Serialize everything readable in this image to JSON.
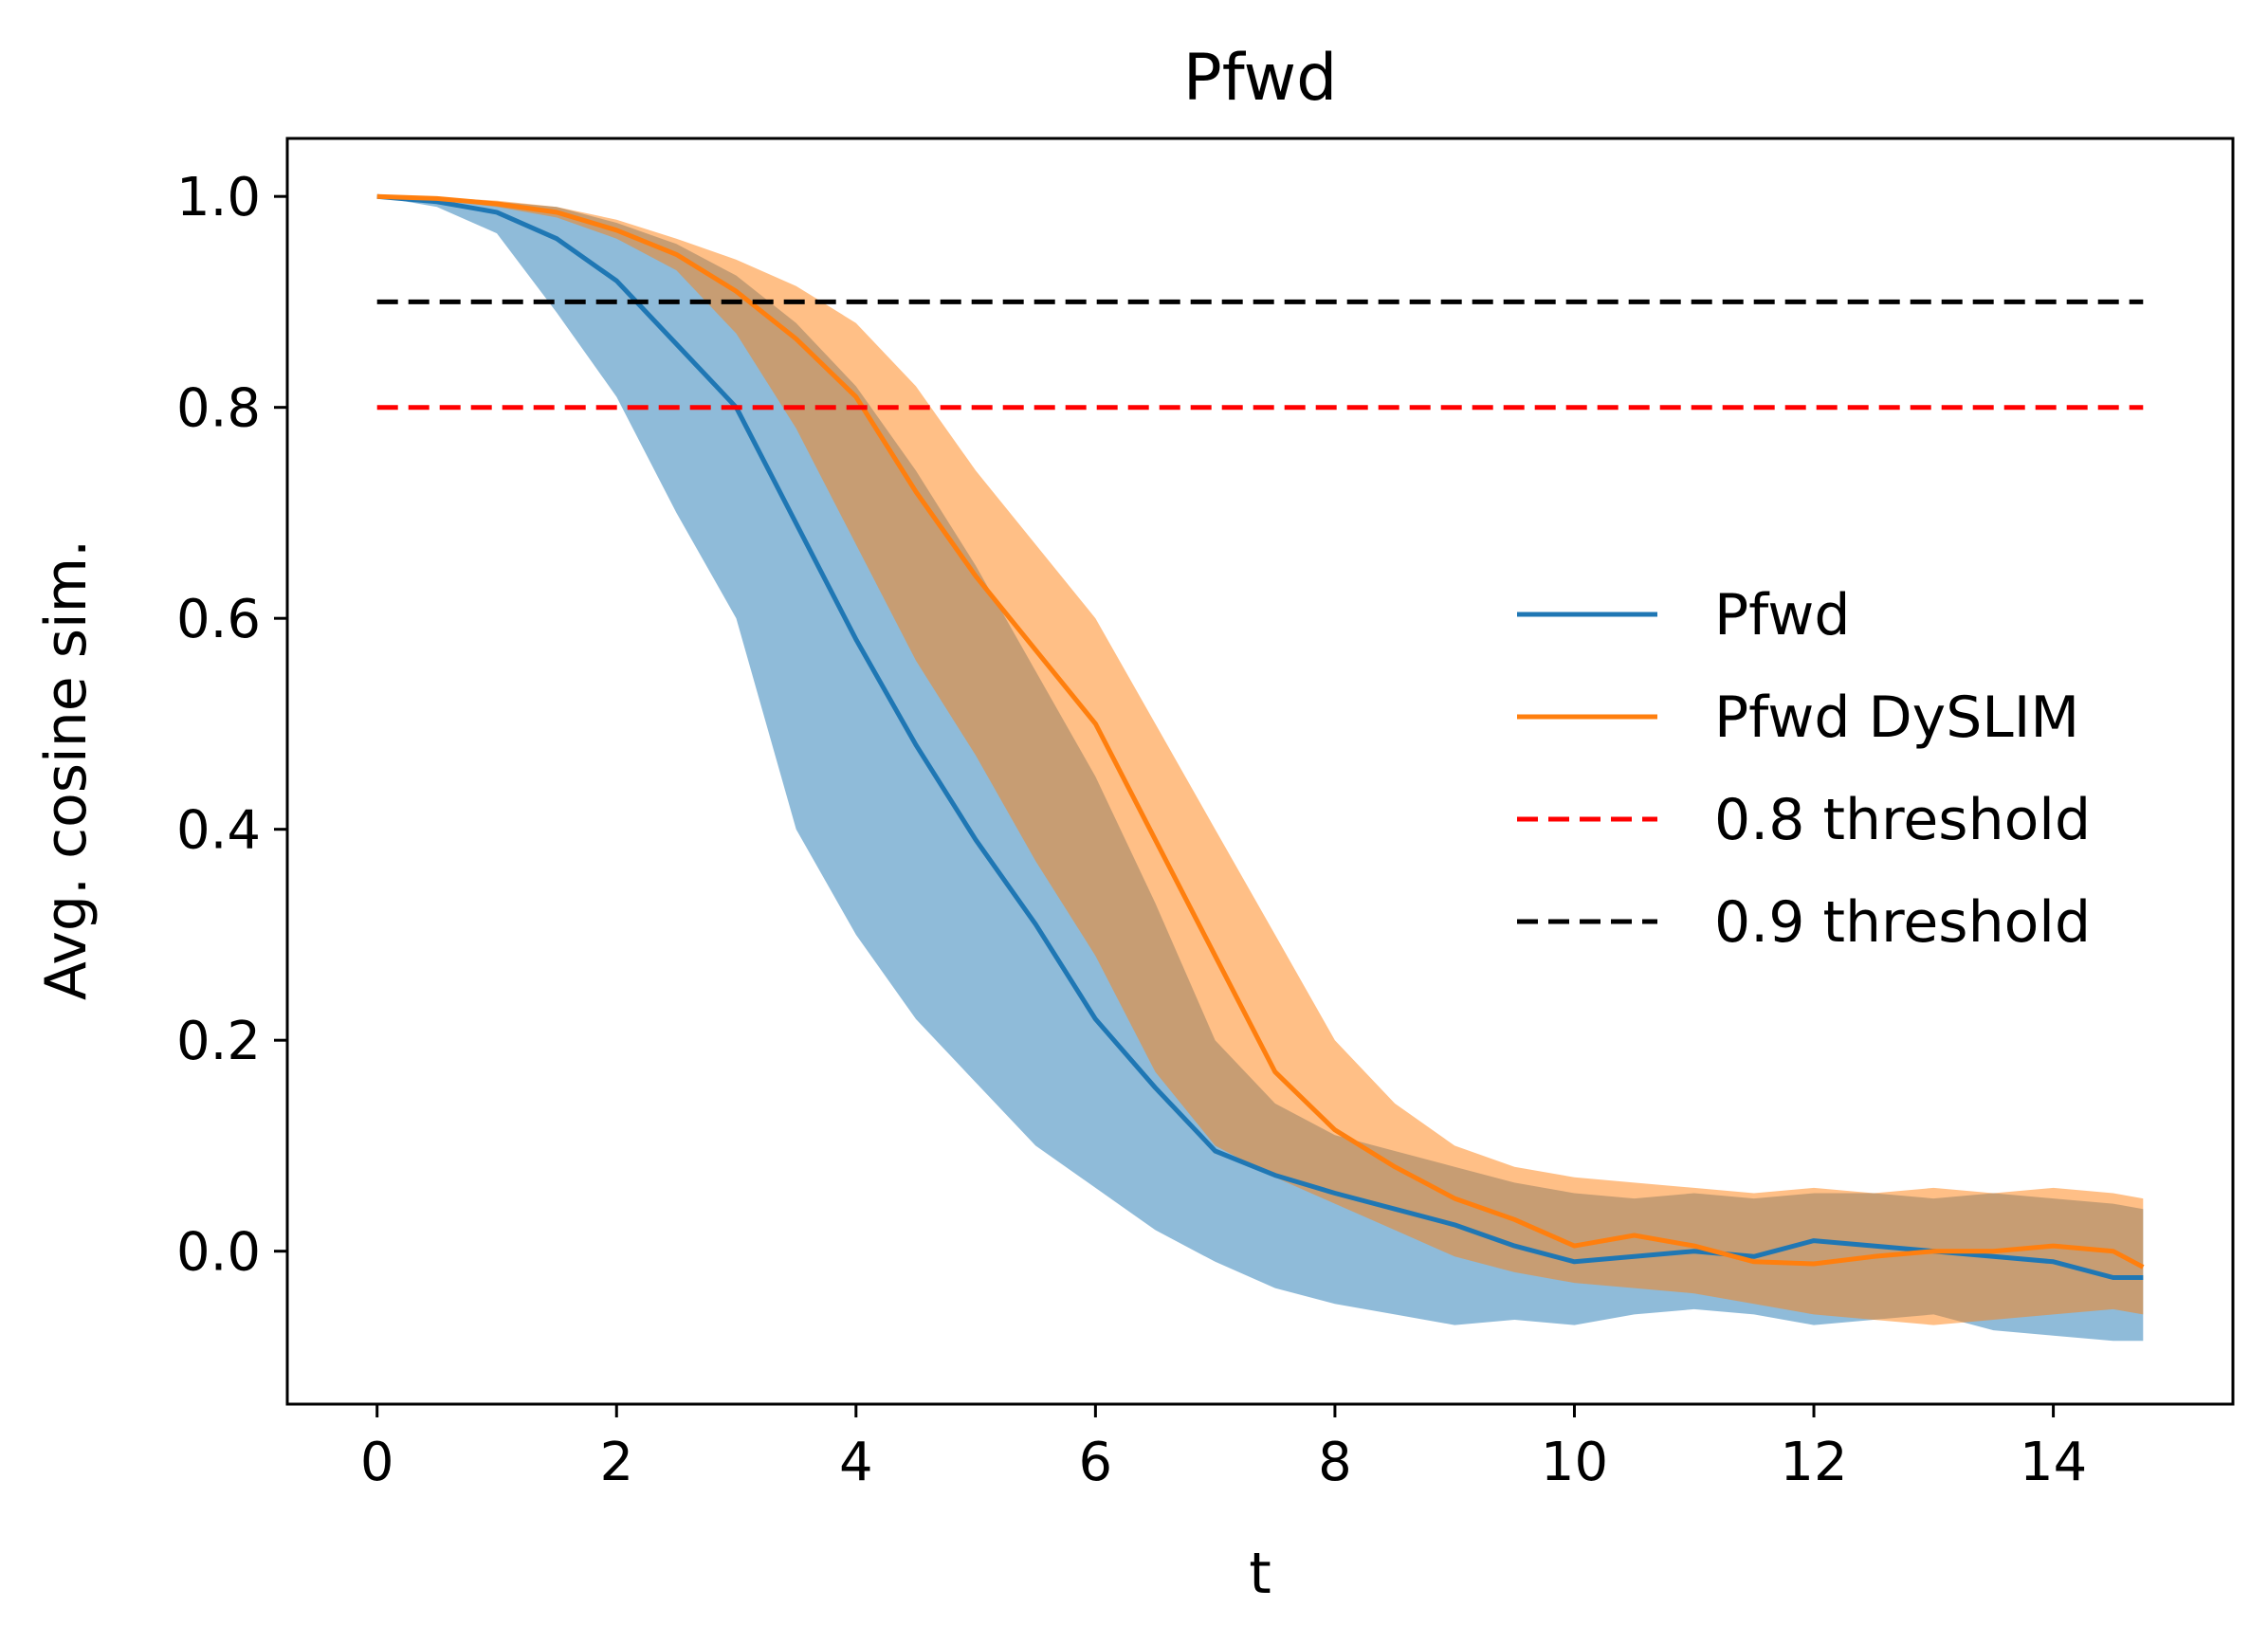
{
  "chart_data": {
    "type": "line",
    "title": "Pfwd",
    "xlabel": "t",
    "ylabel": "Avg. cosine sim.",
    "xlim": [
      -0.75,
      15.5
    ],
    "ylim": [
      -0.145,
      1.055
    ],
    "xticks": [
      0,
      2,
      4,
      6,
      8,
      10,
      12,
      14
    ],
    "yticks": [
      0.0,
      0.2,
      0.4,
      0.6,
      0.8,
      1.0
    ],
    "xtick_labels": [
      "0",
      "2",
      "4",
      "6",
      "8",
      "10",
      "12",
      "14"
    ],
    "ytick_labels": [
      "0.0",
      "0.2",
      "0.4",
      "0.6",
      "0.8",
      "1.0"
    ],
    "grid": false,
    "legend_position": "center-right",
    "series": [
      {
        "name": "Pfwd",
        "color": "#1f77b4",
        "style": "solid",
        "x": [
          0,
          0.5,
          1,
          1.5,
          2,
          2.5,
          3,
          3.5,
          4,
          4.5,
          5,
          5.5,
          6,
          6.5,
          7,
          7.5,
          8,
          8.5,
          9,
          9.5,
          10,
          10.5,
          11,
          11.5,
          12,
          12.5,
          13,
          13.5,
          14,
          14.5,
          14.75
        ],
        "y": [
          1.0,
          0.995,
          0.985,
          0.96,
          0.92,
          0.86,
          0.8,
          0.69,
          0.58,
          0.48,
          0.39,
          0.31,
          0.22,
          0.155,
          0.095,
          0.072,
          0.055,
          0.04,
          0.025,
          0.005,
          -0.01,
          -0.005,
          0.0,
          -0.005,
          0.01,
          0.005,
          0.0,
          -0.005,
          -0.01,
          -0.025,
          -0.025
        ],
        "band_low": [
          1.0,
          0.99,
          0.965,
          0.89,
          0.81,
          0.7,
          0.6,
          0.4,
          0.3,
          0.22,
          0.16,
          0.1,
          0.06,
          0.02,
          -0.01,
          -0.035,
          -0.05,
          -0.06,
          -0.07,
          -0.065,
          -0.07,
          -0.06,
          -0.055,
          -0.06,
          -0.07,
          -0.065,
          -0.06,
          -0.075,
          -0.08,
          -0.085,
          -0.085
        ],
        "band_high": [
          1.0,
          0.998,
          0.995,
          0.99,
          0.975,
          0.955,
          0.925,
          0.88,
          0.82,
          0.74,
          0.65,
          0.55,
          0.45,
          0.33,
          0.2,
          0.14,
          0.11,
          0.095,
          0.08,
          0.065,
          0.055,
          0.05,
          0.055,
          0.05,
          0.055,
          0.055,
          0.05,
          0.055,
          0.05,
          0.045,
          0.04
        ]
      },
      {
        "name": "Pfwd DySLIM",
        "color": "#ff7f0e",
        "style": "solid",
        "x": [
          0,
          0.5,
          1,
          1.5,
          2,
          2.5,
          3,
          3.5,
          4,
          4.5,
          5,
          5.5,
          6,
          6.5,
          7,
          7.5,
          8,
          8.5,
          9,
          9.5,
          10,
          10.5,
          11,
          11.5,
          12,
          12.5,
          13,
          13.5,
          14,
          14.5,
          14.75
        ],
        "y": [
          1.0,
          0.998,
          0.993,
          0.985,
          0.968,
          0.945,
          0.91,
          0.865,
          0.81,
          0.72,
          0.64,
          0.57,
          0.5,
          0.39,
          0.28,
          0.17,
          0.115,
          0.08,
          0.05,
          0.03,
          0.005,
          0.015,
          0.005,
          -0.01,
          -0.012,
          -0.005,
          0.0,
          0.0,
          0.005,
          0.0,
          -0.015
        ],
        "band_low": [
          1.0,
          0.997,
          0.99,
          0.98,
          0.96,
          0.93,
          0.87,
          0.78,
          0.67,
          0.56,
          0.47,
          0.37,
          0.28,
          0.17,
          0.1,
          0.07,
          0.045,
          0.02,
          -0.005,
          -0.02,
          -0.03,
          -0.035,
          -0.04,
          -0.05,
          -0.06,
          -0.065,
          -0.07,
          -0.065,
          -0.06,
          -0.055,
          -0.06
        ],
        "band_high": [
          1.0,
          0.999,
          0.996,
          0.99,
          0.978,
          0.96,
          0.94,
          0.915,
          0.88,
          0.82,
          0.74,
          0.67,
          0.6,
          0.5,
          0.4,
          0.3,
          0.2,
          0.14,
          0.1,
          0.08,
          0.07,
          0.065,
          0.06,
          0.055,
          0.06,
          0.055,
          0.06,
          0.055,
          0.06,
          0.055,
          0.05
        ]
      },
      {
        "name": "0.8 threshold",
        "color": "#ff0000",
        "style": "dashed",
        "x": [
          0,
          14.75
        ],
        "y": [
          0.8,
          0.8
        ]
      },
      {
        "name": "0.9 threshold",
        "color": "#000000",
        "style": "dashed",
        "x": [
          0,
          14.75
        ],
        "y": [
          0.9,
          0.9
        ]
      }
    ]
  }
}
